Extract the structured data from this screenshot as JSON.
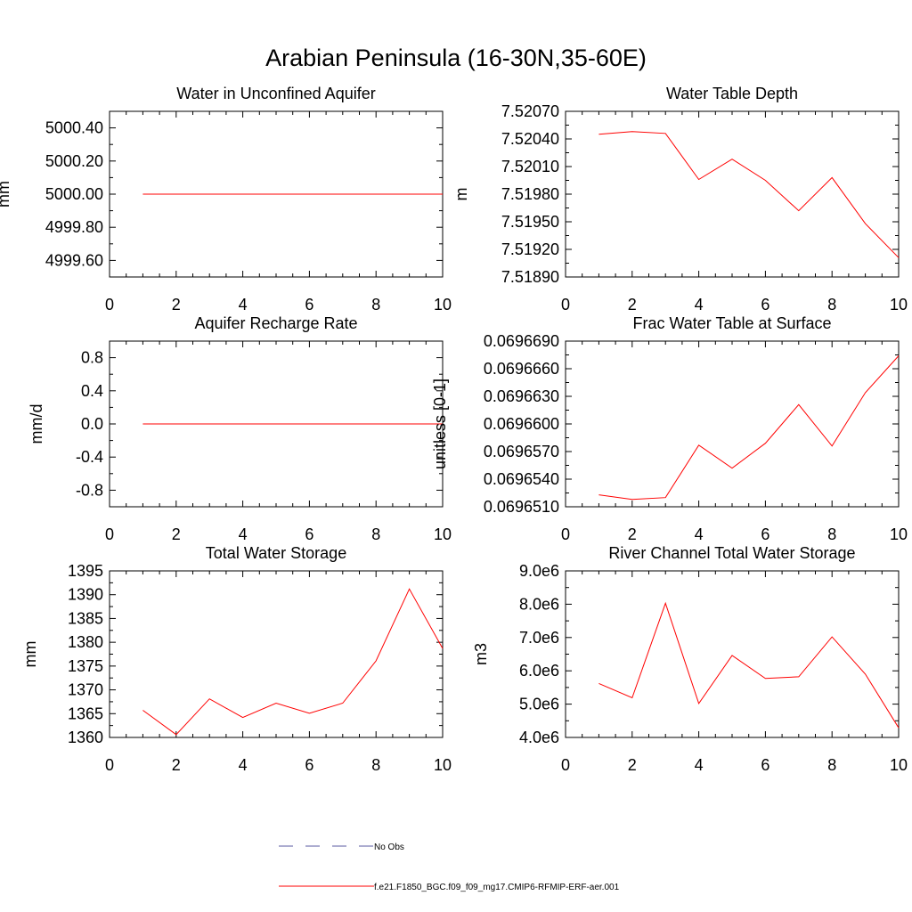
{
  "figure_title": "Arabian Peninsula (16-30N,35-60E)",
  "legend": [
    {
      "label": "No Obs",
      "style": "dashed",
      "color": "#5a5aa0"
    },
    {
      "label": "f.e21.F1850_BGC.f09_f09_mg17.CMIP6-RFMIP-ERF-aer.001",
      "style": "solid",
      "color": "#ff0000"
    }
  ],
  "chart_data": [
    {
      "type": "line",
      "title": "Water in Unconfined Aquifer",
      "xlabel": "",
      "ylabel": "mm",
      "xlim": [
        0,
        10
      ],
      "ylim": [
        4999.5,
        5000.5
      ],
      "xticks": [
        0,
        2,
        4,
        6,
        8,
        10
      ],
      "xtick_labels": [
        "0",
        "2",
        "4",
        "6",
        "8",
        "10"
      ],
      "yticks": [
        4999.6,
        4999.8,
        5000.0,
        5000.2,
        5000.4
      ],
      "ytick_labels": [
        "4999.60",
        "4999.80",
        "5000.00",
        "5000.20",
        "5000.40"
      ],
      "x": [
        1,
        2,
        3,
        4,
        5,
        6,
        7,
        8,
        9,
        10
      ],
      "series": [
        {
          "values": [
            5000,
            5000,
            5000,
            5000,
            5000,
            5000,
            5000,
            5000,
            5000,
            5000
          ],
          "color": "#ff0000"
        }
      ]
    },
    {
      "type": "line",
      "title": "Water Table Depth",
      "xlabel": "",
      "ylabel": "m",
      "xlim": [
        0,
        10
      ],
      "ylim": [
        7.5189,
        7.5207
      ],
      "xticks": [
        0,
        2,
        4,
        6,
        8,
        10
      ],
      "xtick_labels": [
        "0",
        "2",
        "4",
        "6",
        "8",
        "10"
      ],
      "yticks": [
        7.5189,
        7.5192,
        7.5195,
        7.5198,
        7.5201,
        7.5204,
        7.5207
      ],
      "ytick_labels": [
        "7.51890",
        "7.51920",
        "7.51950",
        "7.51980",
        "7.52010",
        "7.52040",
        "7.52070"
      ],
      "x": [
        1,
        2,
        3,
        4,
        5,
        6,
        7,
        8,
        9,
        10
      ],
      "series": [
        {
          "values": [
            7.52045,
            7.52048,
            7.52046,
            7.51996,
            7.52018,
            7.51995,
            7.51962,
            7.51998,
            7.51948,
            7.51911
          ],
          "color": "#ff0000"
        }
      ]
    },
    {
      "type": "line",
      "title": "Aquifer Recharge Rate",
      "xlabel": "",
      "ylabel": "mm/d",
      "xlim": [
        0,
        10
      ],
      "ylim": [
        -1.0,
        1.0
      ],
      "xticks": [
        0,
        2,
        4,
        6,
        8,
        10
      ],
      "xtick_labels": [
        "0",
        "2",
        "4",
        "6",
        "8",
        "10"
      ],
      "yticks": [
        -0.8,
        -0.4,
        0.0,
        0.4,
        0.8
      ],
      "ytick_labels": [
        "-0.8",
        "-0.4",
        "0.0",
        "0.4",
        "0.8"
      ],
      "x": [
        1,
        2,
        3,
        4,
        5,
        6,
        7,
        8,
        9,
        10
      ],
      "series": [
        {
          "values": [
            0,
            0,
            0,
            0,
            0,
            0,
            0,
            0,
            0,
            0
          ],
          "color": "#ff0000"
        }
      ]
    },
    {
      "type": "line",
      "title": "Frac Water Table at Surface",
      "xlabel": "",
      "ylabel": "unitless [0-1]",
      "xlim": [
        0,
        10
      ],
      "ylim": [
        0.069651,
        0.069669
      ],
      "xticks": [
        0,
        2,
        4,
        6,
        8,
        10
      ],
      "xtick_labels": [
        "0",
        "2",
        "4",
        "6",
        "8",
        "10"
      ],
      "yticks": [
        0.069651,
        0.069654,
        0.069657,
        0.06966,
        0.069663,
        0.069666,
        0.069669
      ],
      "ytick_labels": [
        "0.0696510",
        "0.0696540",
        "0.0696570",
        "0.0696600",
        "0.0696630",
        "0.0696660",
        "0.0696690"
      ],
      "x": [
        1,
        2,
        3,
        4,
        5,
        6,
        7,
        8,
        9,
        10
      ],
      "series": [
        {
          "values": [
            0.0696523,
            0.0696518,
            0.069652,
            0.0696577,
            0.0696552,
            0.0696579,
            0.0696621,
            0.0696576,
            0.0696634,
            0.0696674
          ],
          "color": "#ff0000"
        }
      ]
    },
    {
      "type": "line",
      "title": "Total Water Storage",
      "xlabel": "",
      "ylabel": "mm",
      "xlim": [
        0,
        10
      ],
      "ylim": [
        1360,
        1395
      ],
      "xticks": [
        0,
        2,
        4,
        6,
        8,
        10
      ],
      "xtick_labels": [
        "0",
        "2",
        "4",
        "6",
        "8",
        "10"
      ],
      "yticks": [
        1360,
        1365,
        1370,
        1375,
        1380,
        1385,
        1390,
        1395
      ],
      "ytick_labels": [
        "1360",
        "1365",
        "1370",
        "1375",
        "1380",
        "1385",
        "1390",
        "1395"
      ],
      "x": [
        1,
        2,
        3,
        4,
        5,
        6,
        7,
        8,
        9,
        10
      ],
      "series": [
        {
          "values": [
            1365.7,
            1360.6,
            1368.1,
            1364.2,
            1367.2,
            1365.1,
            1367.2,
            1376.1,
            1391.2,
            1378.7
          ],
          "color": "#ff0000"
        }
      ]
    },
    {
      "type": "line",
      "title": "River Channel Total Water Storage",
      "xlabel": "",
      "ylabel": "m3",
      "xlim": [
        0,
        10
      ],
      "ylim": [
        4000000,
        9000000
      ],
      "xticks": [
        0,
        2,
        4,
        6,
        8,
        10
      ],
      "xtick_labels": [
        "0",
        "2",
        "4",
        "6",
        "8",
        "10"
      ],
      "yticks": [
        4000000,
        5000000,
        6000000,
        7000000,
        8000000,
        9000000
      ],
      "ytick_labels": [
        "4.0e6",
        "5.0e6",
        "6.0e6",
        "7.0e6",
        "8.0e6",
        "9.0e6"
      ],
      "x": [
        1,
        2,
        3,
        4,
        5,
        6,
        7,
        8,
        9,
        10
      ],
      "series": [
        {
          "values": [
            5620000,
            5190000,
            8030000,
            5020000,
            6460000,
            5770000,
            5820000,
            7020000,
            5900000,
            4290000
          ],
          "color": "#ff0000"
        }
      ]
    }
  ]
}
